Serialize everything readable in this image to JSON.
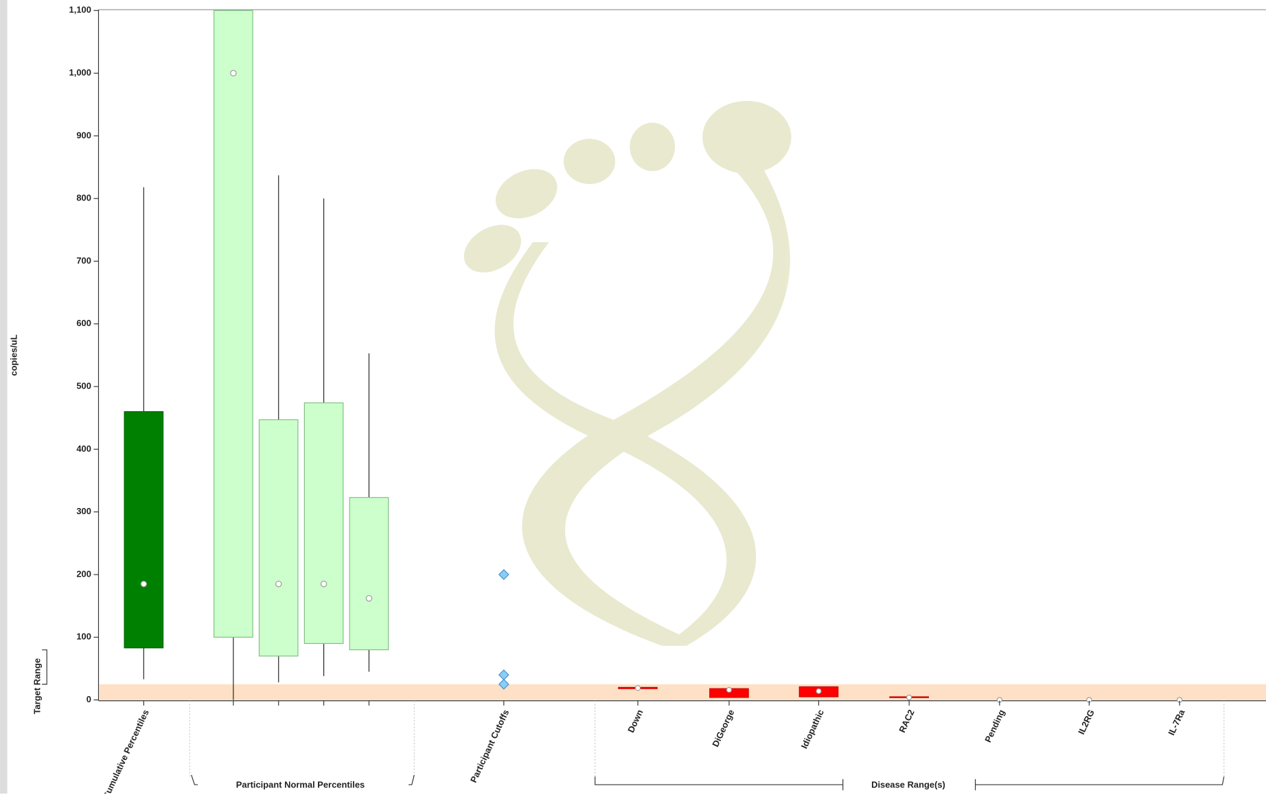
{
  "chart_data": {
    "type": "box",
    "y_label": "copies/uL",
    "categories": [
      "Cumulative Percentiles",
      null,
      null,
      null,
      null,
      "Participant Cutoffs",
      "Down",
      "DiGeorge",
      "Idiopathic",
      "RAC2",
      "Pending",
      "IL2RG",
      "IL-7Ra"
    ],
    "colors": [
      "#008000",
      "#ccffcc",
      "#ccffcc",
      "#ccffcc",
      "#ccffcc",
      "#87cefa",
      "#ff0000",
      "#ff0000",
      "#ff0000",
      "#ff0000",
      "#ff0000",
      "#ff0000",
      "#ff0000"
    ],
    "low": [
      33,
      0,
      28,
      38,
      45,
      null,
      null,
      null,
      null,
      null,
      null,
      null,
      null
    ],
    "q1": [
      83,
      100,
      70,
      90,
      80,
      null,
      18,
      4,
      5,
      4,
      null,
      null,
      null
    ],
    "median": [
      185,
      1000,
      185,
      185,
      162,
      null,
      19,
      16,
      14,
      4,
      0,
      0,
      0
    ],
    "q3": [
      460,
      1100,
      447,
      474,
      323,
      null,
      20,
      18,
      21,
      5,
      null,
      null,
      null
    ],
    "high": [
      818,
      null,
      837,
      800,
      553,
      null,
      null,
      null,
      null,
      null,
      null,
      null,
      null
    ],
    "cutoffs": [
      200,
      40,
      25
    ],
    "target_range": {
      "label": "Target Range",
      "values": [
        0,
        25
      ]
    },
    "groups": [
      "Participant Normal Percentiles",
      "Disease Range(s)"
    ],
    "ylim": [
      0,
      1100
    ],
    "yticks": [
      0,
      100,
      200,
      300,
      400,
      500,
      600,
      700,
      800,
      900,
      {
        "value": 1000,
        "label": "1,000"
      },
      {
        "value": 1100,
        "label": "1,100"
      }
    ]
  }
}
